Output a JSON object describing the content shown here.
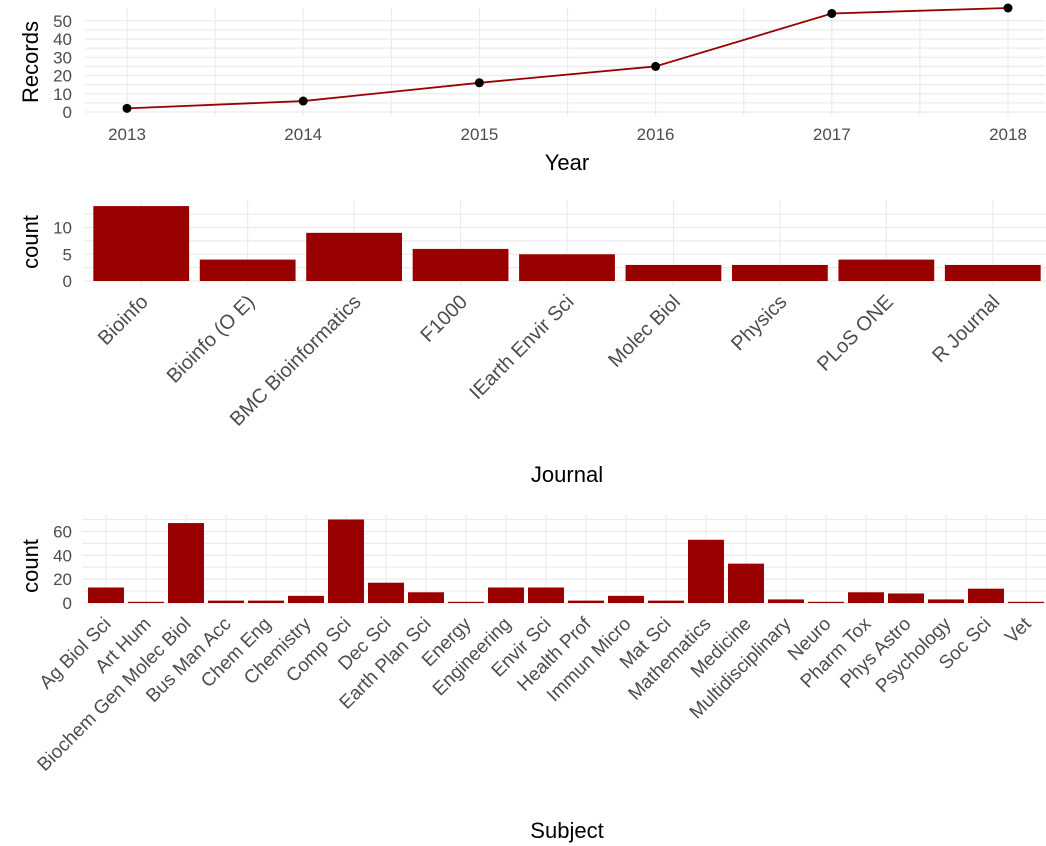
{
  "colors": {
    "bar": "#990000",
    "line": "#990000",
    "point": "#000000",
    "grid": "#ebebeb",
    "tick": "#4d4d4d"
  },
  "chart_data": [
    {
      "type": "line",
      "x": [
        2013,
        2014,
        2015,
        2016,
        2017,
        2018
      ],
      "values": [
        2,
        6,
        16,
        25,
        54,
        57
      ],
      "xlabel": "Year",
      "ylabel": "Records",
      "ylim": [
        0,
        57
      ],
      "yticks": [
        0,
        10,
        20,
        30,
        40,
        50
      ],
      "grid": true,
      "points": true
    },
    {
      "type": "bar",
      "categories": [
        "Bioinfo",
        "Bioinfo (O E)",
        "BMC Bioinformatics",
        "F1000",
        "IEarth Envir Sci",
        "Molec Biol",
        "Physics",
        "PLoS ONE",
        "R Journal"
      ],
      "values": [
        14,
        4,
        9,
        6,
        5,
        3,
        3,
        4,
        3
      ],
      "xlabel": "Journal",
      "ylabel": "count",
      "ylim": [
        0,
        14
      ],
      "yticks": [
        0,
        5,
        10
      ],
      "grid": true
    },
    {
      "type": "bar",
      "categories": [
        "Ag Biol Sci",
        "Art Hum",
        "Biochem Gen Molec Biol",
        "Bus Man Acc",
        "Chem Eng",
        "Chemistry",
        "Comp Sci",
        "Dec Sci",
        "Earth Plan Sci",
        "Energy",
        "Engineering",
        "Envir Sci",
        "Health Prof",
        "Immun Micro",
        "Mat Sci",
        "Mathematics",
        "Medicine",
        "Multidisciplinary",
        "Neuro",
        "Pharm Tox",
        "Phys Astro",
        "Psychology",
        "Soc Sci",
        "Vet"
      ],
      "values": [
        13,
        1,
        67,
        2,
        2,
        6,
        70,
        17,
        9,
        1,
        13,
        13,
        2,
        6,
        2,
        53,
        33,
        3,
        1,
        9,
        8,
        3,
        12,
        1
      ],
      "xlabel": "Subject",
      "ylabel": "count",
      "ylim": [
        0,
        70
      ],
      "yticks": [
        0,
        20,
        40,
        60
      ],
      "grid": true
    }
  ]
}
